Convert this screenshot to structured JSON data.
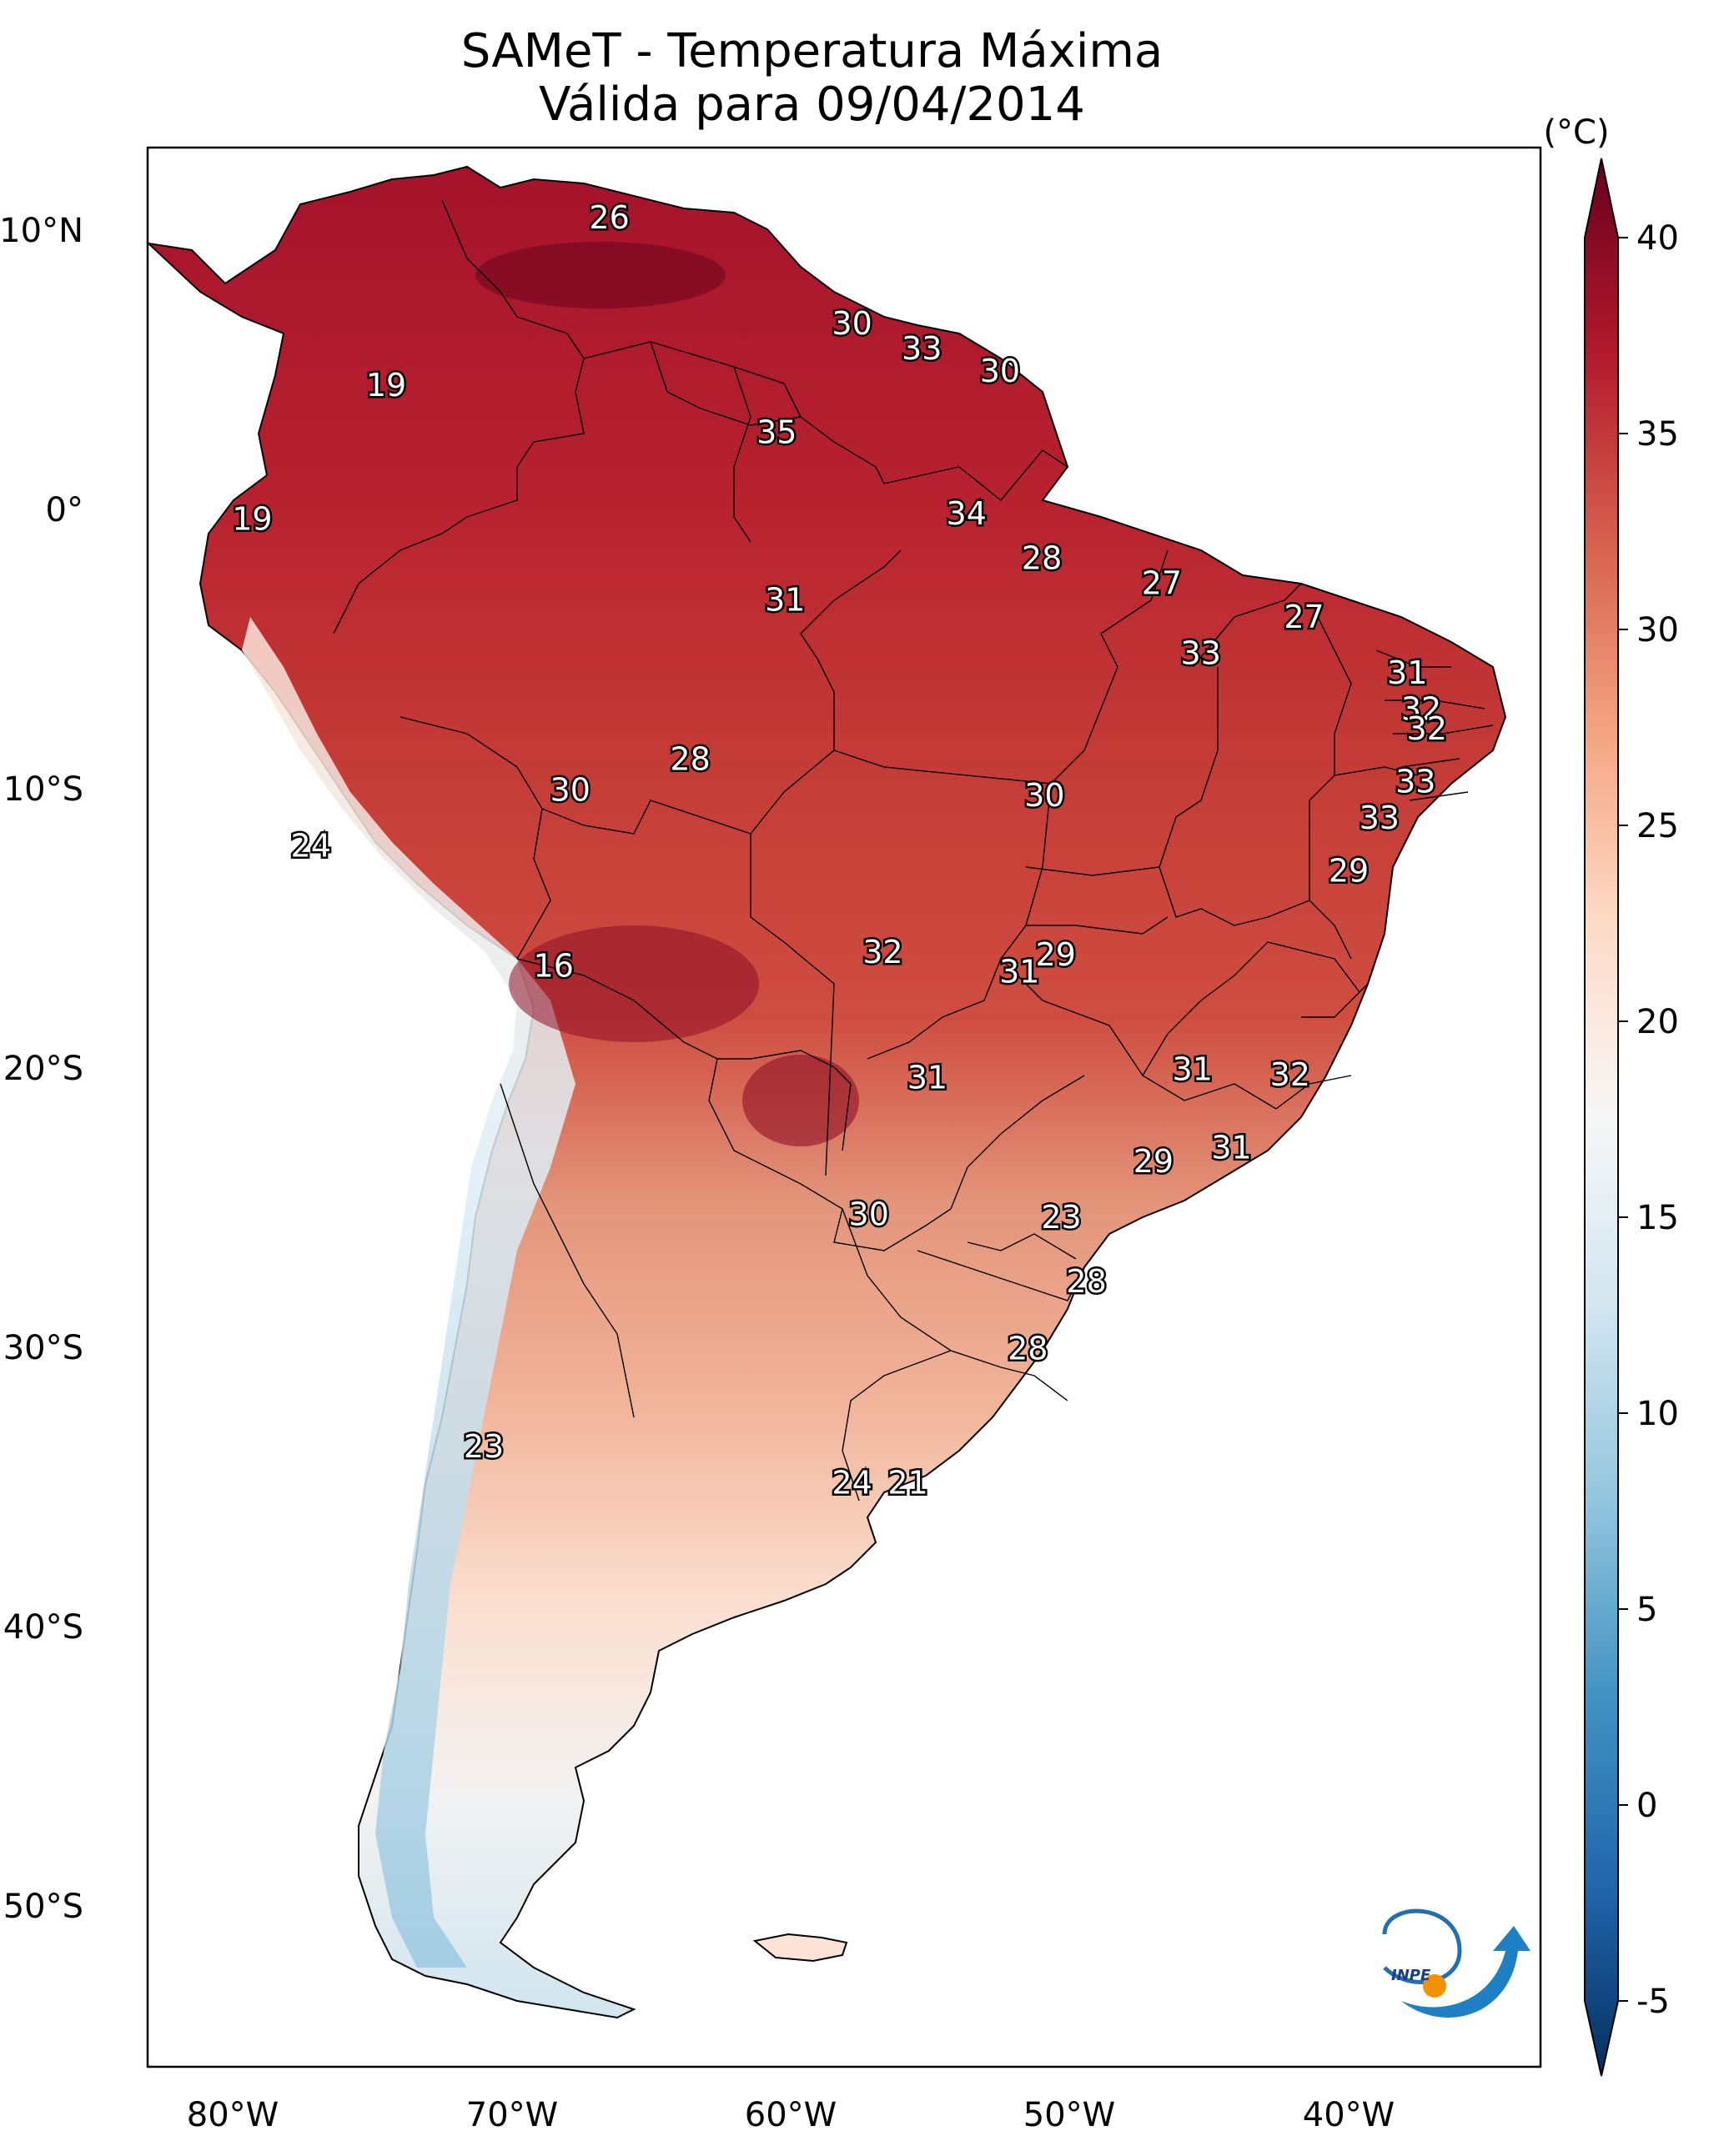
{
  "title": {
    "line1": "SAMeT - Temperatura Máxima",
    "line2": "Válida para 09/04/2014"
  },
  "colorbar": {
    "unit": "(°C)",
    "ticks": [
      "40",
      "35",
      "30",
      "25",
      "20",
      "15",
      "10",
      "5",
      "0",
      "-5"
    ],
    "min": -5,
    "max": 40,
    "colors": [
      "#67001f",
      "#b2182b",
      "#d6604d",
      "#f4a582",
      "#fddbc7",
      "#f7f7f7",
      "#d1e5f0",
      "#92c5de",
      "#4393c3",
      "#2166ac",
      "#053061"
    ]
  },
  "axes": {
    "lon_labels": [
      "80°W",
      "70°W",
      "60°W",
      "50°W",
      "40°W"
    ],
    "lat_labels": [
      "10°N",
      "0°",
      "10°S",
      "20°S",
      "30°S",
      "40°S",
      "50°S"
    ],
    "lon_range": [
      -83,
      -33
    ],
    "lat_range": [
      -56,
      13
    ]
  },
  "temperature_labels": [
    {
      "value": "26",
      "lon": -66.5,
      "lat": 10.5
    },
    {
      "value": "19",
      "lon": -74.5,
      "lat": 4.5
    },
    {
      "value": "30",
      "lon": -57.8,
      "lat": 6.7
    },
    {
      "value": "33",
      "lon": -55.3,
      "lat": 5.8
    },
    {
      "value": "30",
      "lon": -52.5,
      "lat": 5.0
    },
    {
      "value": "35",
      "lon": -60.5,
      "lat": 2.8
    },
    {
      "value": "19",
      "lon": -79.3,
      "lat": -0.3
    },
    {
      "value": "34",
      "lon": -53.7,
      "lat": -0.1
    },
    {
      "value": "28",
      "lon": -51.0,
      "lat": -1.7
    },
    {
      "value": "27",
      "lon": -46.7,
      "lat": -2.6
    },
    {
      "value": "31",
      "lon": -60.2,
      "lat": -3.2
    },
    {
      "value": "27",
      "lon": -41.6,
      "lat": -3.8
    },
    {
      "value": "33",
      "lon": -45.3,
      "lat": -5.1
    },
    {
      "value": "31",
      "lon": -37.9,
      "lat": -5.8
    },
    {
      "value": "32",
      "lon": -37.4,
      "lat": -7.1
    },
    {
      "value": "32",
      "lon": -37.2,
      "lat": -7.8
    },
    {
      "value": "28",
      "lon": -63.6,
      "lat": -8.9
    },
    {
      "value": "30",
      "lon": -67.9,
      "lat": -10.0
    },
    {
      "value": "30",
      "lon": -50.9,
      "lat": -10.2
    },
    {
      "value": "33",
      "lon": -37.6,
      "lat": -9.7
    },
    {
      "value": "33",
      "lon": -38.9,
      "lat": -11.0
    },
    {
      "value": "24",
      "lon": -77.2,
      "lat": -12.0
    },
    {
      "value": "29",
      "lon": -40.0,
      "lat": -12.9
    },
    {
      "value": "29",
      "lon": -50.5,
      "lat": -15.9
    },
    {
      "value": "32",
      "lon": -56.7,
      "lat": -15.8
    },
    {
      "value": "31",
      "lon": -51.8,
      "lat": -16.5
    },
    {
      "value": "16",
      "lon": -68.5,
      "lat": -16.3
    },
    {
      "value": "31",
      "lon": -45.6,
      "lat": -20.0
    },
    {
      "value": "32",
      "lon": -42.1,
      "lat": -20.2
    },
    {
      "value": "31",
      "lon": -55.1,
      "lat": -20.3
    },
    {
      "value": "31",
      "lon": -44.2,
      "lat": -22.8
    },
    {
      "value": "29",
      "lon": -47.0,
      "lat": -23.3
    },
    {
      "value": "30",
      "lon": -57.2,
      "lat": -25.2
    },
    {
      "value": "23",
      "lon": -50.3,
      "lat": -25.3
    },
    {
      "value": "28",
      "lon": -49.4,
      "lat": -27.6
    },
    {
      "value": "28",
      "lon": -51.5,
      "lat": -30.0
    },
    {
      "value": "23",
      "lon": -71.0,
      "lat": -33.5
    },
    {
      "value": "24",
      "lon": -57.8,
      "lat": -34.8
    },
    {
      "value": "21",
      "lon": -55.8,
      "lat": -34.8
    }
  ],
  "logo": {
    "text": "INPE"
  }
}
